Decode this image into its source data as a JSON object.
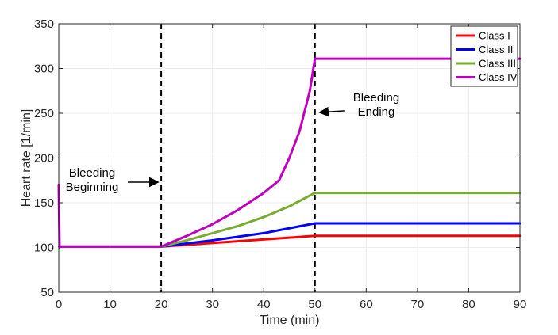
{
  "chart_data": {
    "type": "line",
    "title": "",
    "xlabel": "Time (min)",
    "ylabel": "Heart rate [1/min]",
    "xlim": [
      0,
      90
    ],
    "ylim": [
      50,
      350
    ],
    "xticks": [
      0,
      10,
      20,
      30,
      40,
      50,
      60,
      70,
      80,
      90
    ],
    "yticks": [
      50,
      100,
      150,
      200,
      250,
      300,
      350
    ],
    "grid": true,
    "legend_position": "top-right",
    "series": [
      {
        "name": "Class I",
        "color": "#ff0000",
        "x": [
          0.1,
          0.3,
          20,
          50,
          90
        ],
        "y": [
          101,
          101,
          101,
          113,
          113
        ]
      },
      {
        "name": "Class II",
        "color": "#0000ff",
        "x": [
          0.1,
          0.3,
          20,
          30,
          40,
          50,
          90
        ],
        "y": [
          101,
          101,
          101,
          108,
          116,
          127,
          127
        ]
      },
      {
        "name": "Class III",
        "color": "#77ac30",
        "x": [
          0.1,
          0.3,
          20,
          25,
          30,
          35,
          40,
          45,
          50,
          90
        ],
        "y": [
          101,
          101,
          101,
          108,
          116,
          124,
          134,
          146,
          161,
          161
        ]
      },
      {
        "name": "Class IV",
        "color": "#bf00bf",
        "x": [
          0,
          0.15,
          0.3,
          20,
          25,
          30,
          35,
          40,
          43,
          45,
          47,
          49,
          50,
          90
        ],
        "y": [
          170,
          100,
          101,
          101,
          113,
          126,
          142,
          161,
          175,
          200,
          230,
          275,
          311,
          311
        ]
      }
    ],
    "vlines": [
      {
        "x": 20,
        "style": "dashed",
        "color": "#000000"
      },
      {
        "x": 50,
        "style": "dashed",
        "color": "#000000"
      }
    ],
    "annotations": [
      {
        "lines": [
          "Bleeding",
          "Beginning"
        ],
        "arrow_to_x": 20,
        "at_y": 173
      },
      {
        "lines": [
          "Bleeding",
          "Ending"
        ],
        "arrow_to_x": 50,
        "at_y": 251
      }
    ]
  }
}
